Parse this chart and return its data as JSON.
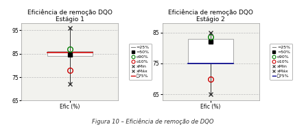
{
  "chart1": {
    "title": "Eficiência de remoção DQO\nEstágio 1",
    "p25": 84.0,
    "p75": 86.0,
    "p50": 84.5,
    "p90": 87.0,
    "p10": 78.0,
    "pmin": 72.0,
    "pmax": 96.0,
    "p75line": 85.5,
    "ylim": [
      65,
      98
    ],
    "yticks": [
      65,
      75,
      85,
      95
    ],
    "xlabel": "Efic (%)"
  },
  "chart2": {
    "title": "Eficiência de remoção DQO\nEstágio 2",
    "p25": 75.0,
    "p75": 83.0,
    "p50": 82.0,
    "p90": 83.5,
    "p10": 70.0,
    "pmin": 65.0,
    "pmax": 85.0,
    "p75line": 75.0,
    "ylim": [
      63,
      88
    ],
    "yticks": [
      65,
      75,
      85
    ],
    "xlabel": "Efic (%)"
  },
  "figure_title": "Figura 10 – Eficiência de remoção de DQO",
  "p50_color": "#000000",
  "p90_color": "#008000",
  "p10_color": "#cc0000",
  "whisker_color": "#333333",
  "p75line_color1": "#cc0000",
  "p75line_color2": "#00008b",
  "box_edgecolor": "#999999",
  "grid_color": "#bbbbbb",
  "bg_color": "#ffffff",
  "plot_bg": "#f2f2ee"
}
